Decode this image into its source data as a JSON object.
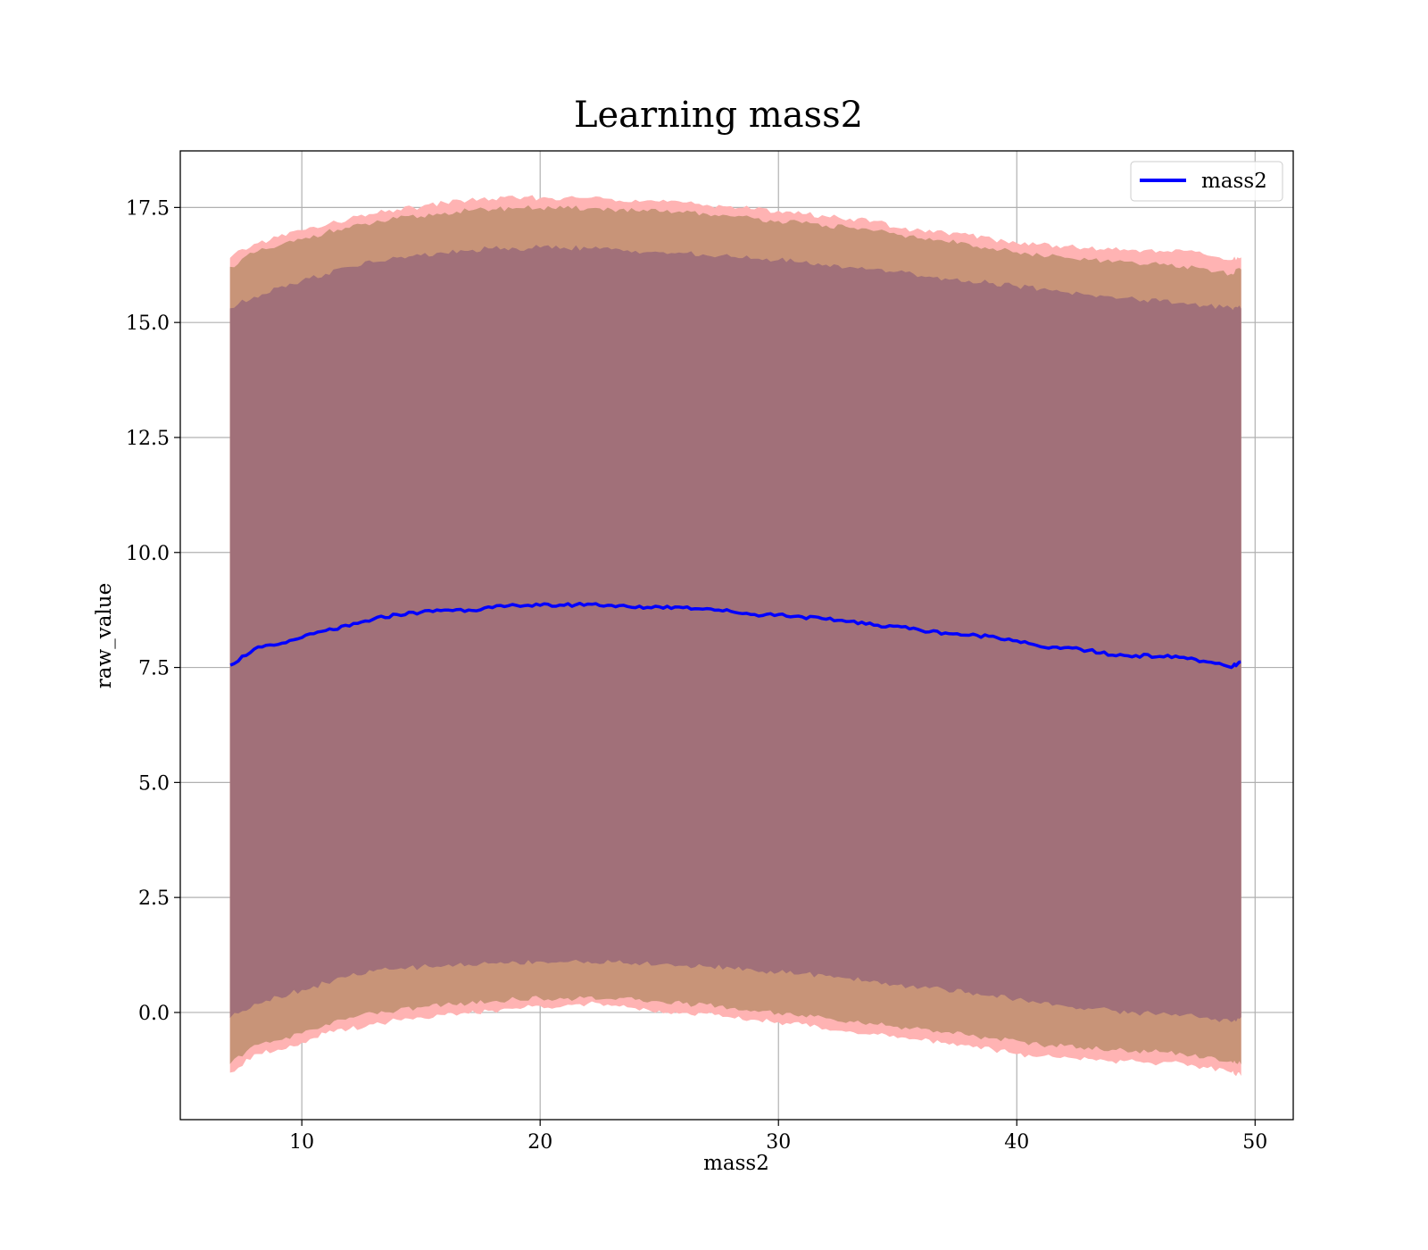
{
  "chart_data": {
    "type": "line",
    "title": "Learning mass2",
    "xlabel": "mass2",
    "ylabel": "raw_value",
    "xlim": [
      4.9,
      51.6
    ],
    "ylim": [
      -2.33,
      18.73
    ],
    "x_ticks": [
      10,
      20,
      30,
      40,
      50
    ],
    "y_ticks": [
      0.0,
      2.5,
      5.0,
      7.5,
      10.0,
      12.5,
      15.0,
      17.5
    ],
    "x_tick_labels": [
      "10",
      "20",
      "30",
      "40",
      "50"
    ],
    "y_tick_labels": [
      "0.0",
      "2.5",
      "5.0",
      "7.5",
      "10.0",
      "12.5",
      "15.0",
      "17.5"
    ],
    "grid": true,
    "legend": {
      "position": "top-right",
      "entries": [
        "mass2"
      ]
    },
    "colors": {
      "line": "#0000ff",
      "band_outer": "#ffb3b3",
      "band_middle": "#c89478",
      "band_inner": "#a17079",
      "grid": "#b0b0b0"
    },
    "x": [
      7,
      8,
      9,
      10,
      11,
      12,
      13,
      14,
      15,
      16,
      17,
      18,
      19,
      20,
      21,
      22,
      23,
      24,
      25,
      26,
      27,
      28,
      29,
      30,
      31,
      32,
      33,
      34,
      35,
      36,
      37,
      38,
      39,
      40,
      41,
      42,
      43,
      44,
      45,
      46,
      47,
      48,
      49,
      49.4
    ],
    "series": [
      {
        "name": "mass2",
        "values": [
          7.55,
          7.9,
          8.0,
          8.15,
          8.3,
          8.4,
          8.55,
          8.65,
          8.7,
          8.75,
          8.75,
          8.8,
          8.85,
          8.85,
          8.85,
          8.88,
          8.85,
          8.8,
          8.82,
          8.8,
          8.78,
          8.72,
          8.65,
          8.65,
          8.6,
          8.55,
          8.5,
          8.42,
          8.4,
          8.3,
          8.25,
          8.2,
          8.18,
          8.08,
          7.95,
          7.93,
          7.87,
          7.77,
          7.76,
          7.74,
          7.72,
          7.62,
          7.5,
          7.62
        ]
      }
    ],
    "bands": [
      {
        "lower": [
          -1.3,
          -0.9,
          -0.8,
          -0.65,
          -0.45,
          -0.35,
          -0.25,
          -0.15,
          -0.1,
          -0.05,
          -0.02,
          0.05,
          0.1,
          0.15,
          0.15,
          0.2,
          0.15,
          0.1,
          0.05,
          0.0,
          -0.02,
          -0.1,
          -0.15,
          -0.2,
          -0.25,
          -0.35,
          -0.4,
          -0.45,
          -0.55,
          -0.6,
          -0.65,
          -0.7,
          -0.8,
          -0.9,
          -0.95,
          -0.95,
          -1.0,
          -1.05,
          -1.05,
          -1.1,
          -1.1,
          -1.2,
          -1.3,
          -1.35
        ],
        "upper": [
          16.4,
          16.7,
          16.85,
          17.0,
          17.1,
          17.25,
          17.35,
          17.45,
          17.5,
          17.6,
          17.65,
          17.68,
          17.7,
          17.7,
          17.7,
          17.7,
          17.68,
          17.66,
          17.62,
          17.6,
          17.55,
          17.52,
          17.45,
          17.42,
          17.35,
          17.3,
          17.25,
          17.2,
          17.05,
          17.0,
          16.95,
          16.9,
          16.8,
          16.72,
          16.7,
          16.65,
          16.6,
          16.58,
          16.57,
          16.55,
          16.55,
          16.45,
          16.35,
          16.4
        ]
      },
      {
        "lower": [
          -1.1,
          -0.7,
          -0.6,
          -0.45,
          -0.25,
          -0.1,
          0.0,
          0.05,
          0.12,
          0.18,
          0.2,
          0.25,
          0.3,
          0.32,
          0.3,
          0.35,
          0.3,
          0.28,
          0.25,
          0.2,
          0.18,
          0.1,
          0.05,
          0.0,
          -0.05,
          -0.12,
          -0.18,
          -0.25,
          -0.3,
          -0.35,
          -0.42,
          -0.5,
          -0.55,
          -0.6,
          -0.7,
          -0.72,
          -0.75,
          -0.8,
          -0.82,
          -0.85,
          -0.9,
          -0.95,
          -1.05,
          -1.1
        ],
        "upper": [
          16.2,
          16.5,
          16.65,
          16.8,
          16.95,
          17.05,
          17.15,
          17.25,
          17.3,
          17.38,
          17.42,
          17.45,
          17.48,
          17.48,
          17.47,
          17.47,
          17.45,
          17.42,
          17.4,
          17.38,
          17.35,
          17.3,
          17.25,
          17.2,
          17.15,
          17.1,
          17.05,
          16.98,
          16.9,
          16.82,
          16.75,
          16.7,
          16.6,
          16.52,
          16.45,
          16.4,
          16.35,
          16.3,
          16.28,
          16.25,
          16.22,
          16.15,
          16.05,
          16.15
        ]
      },
      {
        "lower": [
          -0.1,
          0.2,
          0.35,
          0.5,
          0.65,
          0.8,
          0.9,
          0.95,
          1.0,
          1.02,
          1.05,
          1.08,
          1.1,
          1.12,
          1.1,
          1.12,
          1.1,
          1.08,
          1.05,
          1.02,
          1.0,
          0.98,
          0.92,
          0.88,
          0.85,
          0.8,
          0.75,
          0.7,
          0.6,
          0.55,
          0.5,
          0.45,
          0.38,
          0.3,
          0.2,
          0.15,
          0.1,
          0.05,
          0.0,
          -0.02,
          -0.05,
          -0.1,
          -0.2,
          -0.1
        ],
        "upper": [
          15.3,
          15.55,
          15.75,
          15.9,
          16.05,
          16.2,
          16.3,
          16.4,
          16.45,
          16.5,
          16.55,
          16.6,
          16.6,
          16.62,
          16.62,
          16.6,
          16.58,
          16.55,
          16.52,
          16.5,
          16.45,
          16.42,
          16.38,
          16.35,
          16.3,
          16.25,
          16.2,
          16.15,
          16.1,
          16.0,
          15.95,
          15.9,
          15.85,
          15.78,
          15.72,
          15.65,
          15.6,
          15.55,
          15.5,
          15.45,
          15.42,
          15.35,
          15.3,
          15.3
        ]
      }
    ]
  }
}
